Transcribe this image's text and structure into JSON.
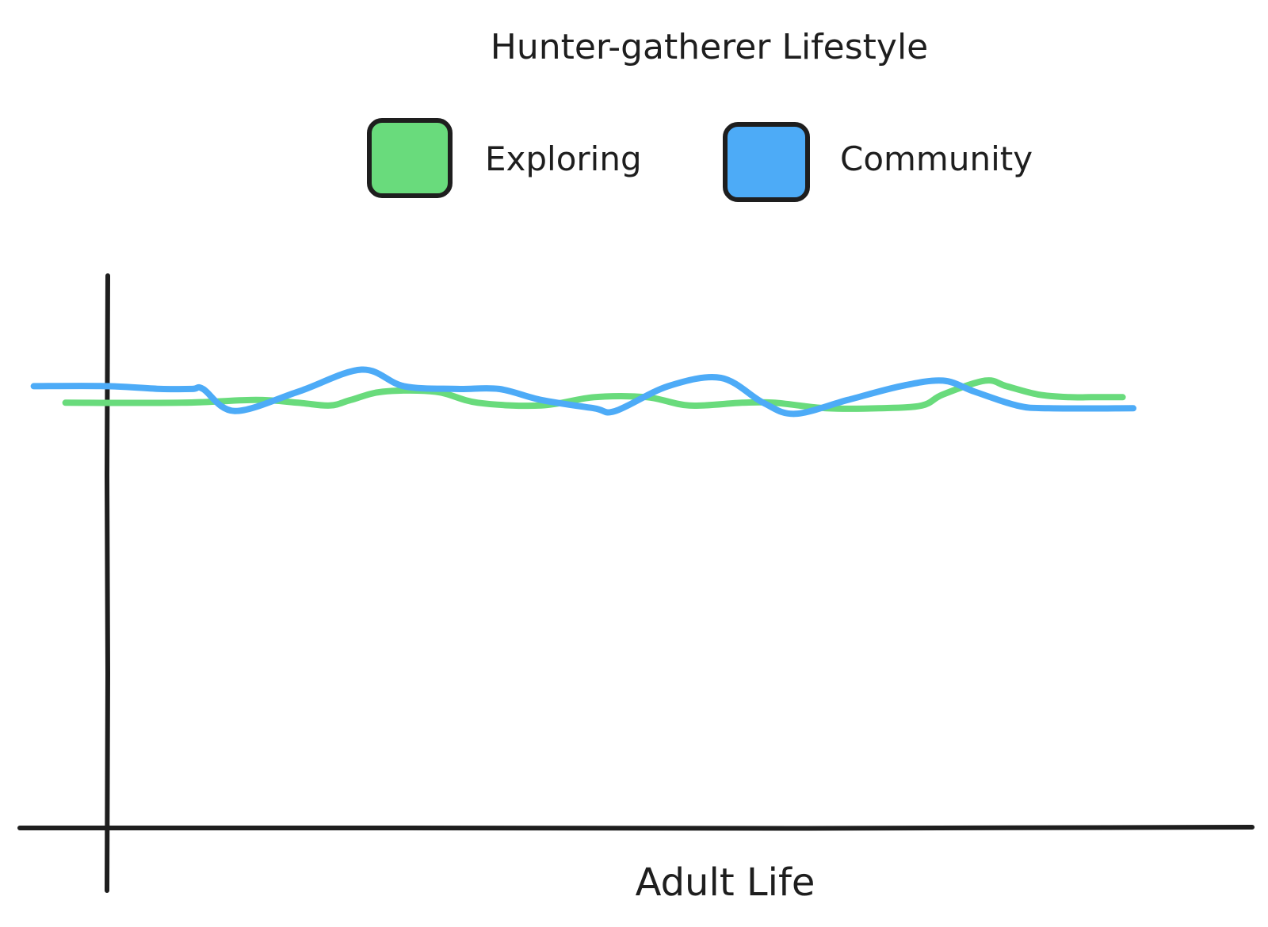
{
  "chart_data": {
    "type": "line",
    "title": "Hunter-gatherer Lifestyle",
    "xlabel": "Adult Life",
    "ylabel": "",
    "x_range": [
      0,
      100
    ],
    "y_range": [
      0,
      100
    ],
    "grid": false,
    "legend_placement": "top-center",
    "series": [
      {
        "name": "Exploring",
        "color": "#69db7c",
        "points": [
          [
            -4,
            77
          ],
          [
            7,
            77
          ],
          [
            14,
            77.5
          ],
          [
            18,
            77
          ],
          [
            21,
            76.5
          ],
          [
            23,
            77.5
          ],
          [
            26,
            79
          ],
          [
            31,
            79
          ],
          [
            35,
            77
          ],
          [
            41,
            76.5
          ],
          [
            46,
            78
          ],
          [
            51,
            78
          ],
          [
            55,
            76.5
          ],
          [
            60,
            77
          ],
          [
            63,
            77
          ],
          [
            68,
            76
          ],
          [
            73,
            76
          ],
          [
            77,
            76.5
          ],
          [
            79,
            78.5
          ],
          [
            83,
            81
          ],
          [
            85,
            80
          ],
          [
            88,
            78.5
          ],
          [
            91,
            78
          ],
          [
            93,
            78
          ],
          [
            96,
            78
          ]
        ]
      },
      {
        "name": "Community",
        "color": "#4dabf7",
        "points": [
          [
            -7,
            80
          ],
          [
            0,
            80
          ],
          [
            5,
            79.5
          ],
          [
            8,
            79.5
          ],
          [
            9,
            79.5
          ],
          [
            12,
            75.5
          ],
          [
            18,
            79
          ],
          [
            24,
            83
          ],
          [
            28,
            80
          ],
          [
            33,
            79.5
          ],
          [
            37,
            79.5
          ],
          [
            41,
            77.5
          ],
          [
            46,
            76
          ],
          [
            48,
            75.5
          ],
          [
            53,
            80
          ],
          [
            58,
            81.5
          ],
          [
            62,
            77
          ],
          [
            65,
            75
          ],
          [
            70,
            77.5
          ],
          [
            75,
            80
          ],
          [
            79,
            81
          ],
          [
            82,
            79
          ],
          [
            86,
            76.5
          ],
          [
            89,
            76
          ],
          [
            97,
            76
          ]
        ]
      }
    ]
  }
}
